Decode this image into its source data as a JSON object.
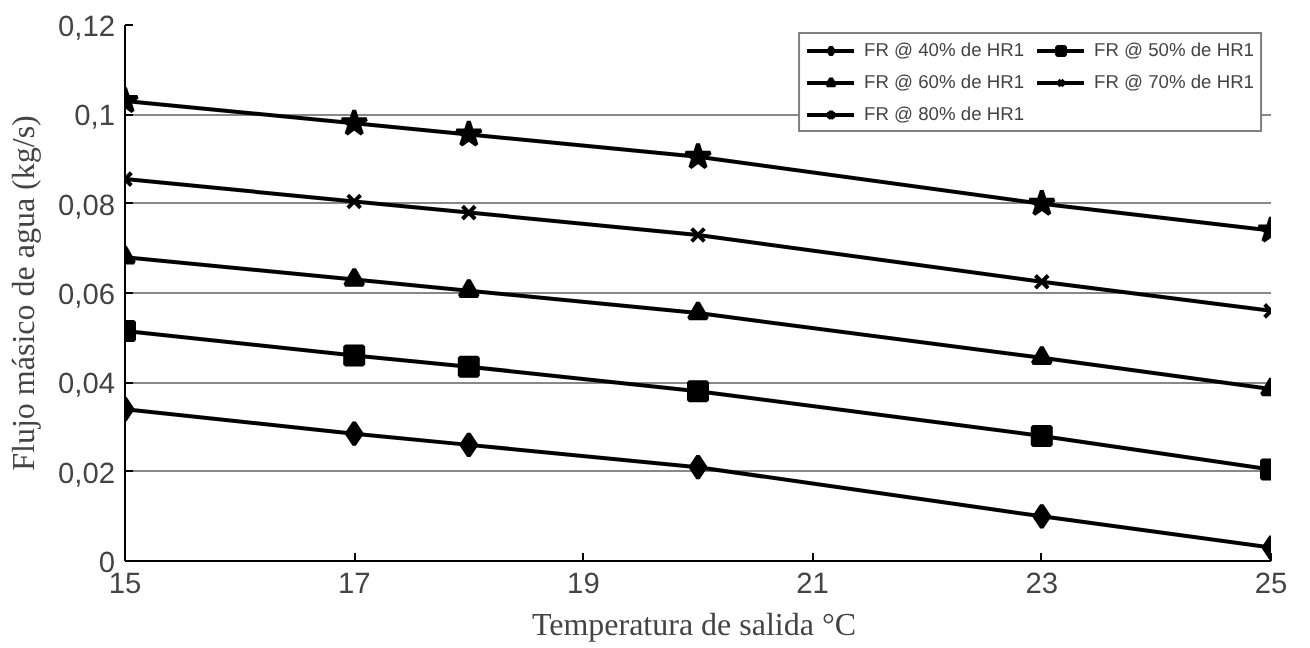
{
  "chart_data": {
    "type": "line",
    "xlabel": "Temperatura  de salida °C",
    "ylabel": "Flujo másico de agua (kg/s)",
    "x": [
      15,
      17,
      18,
      20,
      23,
      25
    ],
    "series": [
      {
        "name": "FR @ 40% de HR1",
        "color": "#000000",
        "marker": "diamond",
        "values": [
          0.034,
          0.0285,
          0.026,
          0.021,
          0.01,
          0.003
        ]
      },
      {
        "name": "FR @ 50% de HR1",
        "color": "#000000",
        "marker": "square",
        "values": [
          0.0515,
          0.046,
          0.0435,
          0.038,
          0.028,
          0.0205
        ]
      },
      {
        "name": "FR @ 60% de HR1",
        "color": "#000000",
        "marker": "triangle",
        "values": [
          0.068,
          0.063,
          0.0605,
          0.0555,
          0.0455,
          0.0385
        ]
      },
      {
        "name": "FR @ 70% de HR1",
        "color": "#000000",
        "marker": "cross",
        "values": [
          0.0855,
          0.0805,
          0.078,
          0.073,
          0.0625,
          0.056
        ]
      },
      {
        "name": "FR @ 80% de HR1",
        "color": "#000000",
        "marker": "star",
        "values": [
          0.103,
          0.098,
          0.0955,
          0.0905,
          0.08,
          0.074
        ]
      }
    ],
    "xlim": [
      15,
      25
    ],
    "xticks": [
      15,
      17,
      19,
      21,
      23,
      25
    ],
    "ylim": [
      0,
      0.12
    ],
    "yticks": [
      {
        "value": 0,
        "label": "0"
      },
      {
        "value": 0.02,
        "label": "0,02"
      },
      {
        "value": 0.04,
        "label": "0,04"
      },
      {
        "value": 0.06,
        "label": "0,06"
      },
      {
        "value": 0.08,
        "label": "0,08"
      },
      {
        "value": 0.1,
        "label": "0,1"
      },
      {
        "value": 0.12,
        "label": "0,12"
      }
    ],
    "grid": "y",
    "legend": "top right",
    "line_style": "solid"
  }
}
